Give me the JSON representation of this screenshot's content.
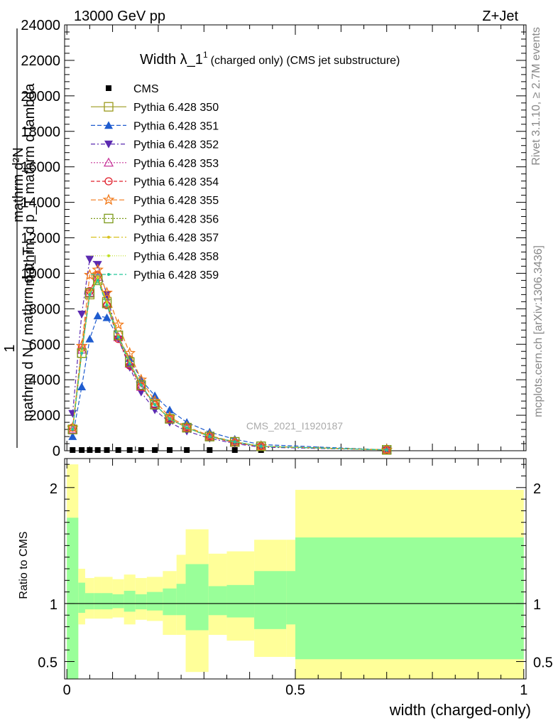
{
  "header": {
    "left": "13000 GeV pp",
    "right": "Z+Jet"
  },
  "title": {
    "main": "Width λ_1",
    "sup": "1",
    "suffix": "(charged only) (CMS jet substructure)"
  },
  "side_labels": {
    "rivet": "Rivet 3.1.10, ≥ 2.7M events",
    "mcplots": "mcplots.cern.ch [arXiv:1306.3436]"
  },
  "watermark": "CMS_2021_I1920187",
  "ylabel_main": {
    "line1": "mathrm d²N",
    "line2": "mathrm d p_T mathrm d lambda",
    "line3": "1",
    "line4": "mathrm d N / mathrm d p_T"
  },
  "ylabel_ratio": "Ratio to CMS",
  "xlabel": "width (charged-only)",
  "colors": {
    "band_inner": "#99ff99",
    "band_outer": "#ffff99",
    "data": "#000000"
  },
  "chart_data": [
    {
      "type": "line",
      "panel": "main",
      "x": [
        0.0125,
        0.0325,
        0.05,
        0.0675,
        0.0875,
        0.1125,
        0.1375,
        0.1625,
        0.1925,
        0.225,
        0.2625,
        0.3125,
        0.3675,
        0.425,
        0.7
      ],
      "xlim": [
        -0.005,
        1.005
      ],
      "ylim": [
        0,
        24000
      ],
      "yticks": [
        0,
        2000,
        4000,
        6000,
        8000,
        10000,
        12000,
        14000,
        16000,
        18000,
        20000,
        22000,
        24000
      ],
      "xticks": [
        0,
        0.5,
        1
      ],
      "series": [
        {
          "name": "CMS",
          "color": "#000000",
          "marker": "square-filled",
          "dash": "",
          "values": [
            40,
            40,
            40,
            40,
            40,
            40,
            40,
            40,
            40,
            40,
            40,
            40,
            40,
            40,
            40
          ]
        },
        {
          "name": "Pythia 6.428 350",
          "color": "#9c9a1d",
          "marker": "square-open",
          "dash": "",
          "values": [
            1200,
            5500,
            8800,
            9700,
            8400,
            6500,
            5000,
            3700,
            2600,
            1800,
            1300,
            800,
            500,
            250,
            50
          ]
        },
        {
          "name": "Pythia 6.428 351",
          "color": "#1f5ccf",
          "marker": "triangle-up-filled",
          "dash": "6,3",
          "values": [
            800,
            3600,
            6300,
            7600,
            7500,
            6400,
            5200,
            4000,
            3100,
            2300,
            1600,
            1050,
            650,
            350,
            50
          ]
        },
        {
          "name": "Pythia 6.428 352",
          "color": "#5b2ab0",
          "marker": "triangle-down-filled",
          "dash": "6,3,2,3",
          "values": [
            2100,
            7700,
            10800,
            10500,
            8800,
            6300,
            4700,
            3300,
            2300,
            1600,
            1100,
            700,
            400,
            200,
            50
          ]
        },
        {
          "name": "Pythia 6.428 353",
          "color": "#c8379a",
          "marker": "triangle-up-open",
          "dash": "2,2",
          "values": [
            1200,
            5700,
            8900,
            9800,
            8300,
            6400,
            4900,
            3600,
            2600,
            1800,
            1300,
            800,
            450,
            250,
            50
          ]
        },
        {
          "name": "Pythia 6.428 354",
          "color": "#e0202c",
          "marker": "circle-open",
          "dash": "5,3",
          "values": [
            1300,
            5800,
            9000,
            9900,
            8200,
            6300,
            4800,
            3600,
            2600,
            1800,
            1300,
            800,
            450,
            250,
            50
          ]
        },
        {
          "name": "Pythia 6.428 355",
          "color": "#f27a1a",
          "marker": "star-open",
          "dash": "7,3",
          "values": [
            1300,
            5900,
            9900,
            10200,
            8900,
            7100,
            5500,
            4000,
            2800,
            1900,
            1350,
            850,
            500,
            250,
            50
          ]
        },
        {
          "name": "Pythia 6.428 356",
          "color": "#7d9a1a",
          "marker": "square-open",
          "dash": "2,2",
          "values": [
            1200,
            5500,
            8900,
            9600,
            8300,
            6500,
            5000,
            3700,
            2600,
            1800,
            1300,
            800,
            500,
            250,
            50
          ]
        },
        {
          "name": "Pythia 6.428 357",
          "color": "#d8c21f",
          "marker": "dot",
          "dash": "8,3,2,3",
          "values": [
            1200,
            5600,
            8900,
            9800,
            8400,
            6500,
            5000,
            3700,
            2600,
            1800,
            1300,
            800,
            500,
            250,
            50
          ]
        },
        {
          "name": "Pythia 6.428 358",
          "color": "#bfe020",
          "marker": "dot",
          "dash": "1,2",
          "values": [
            1200,
            5600,
            8800,
            9700,
            8300,
            6400,
            5000,
            3700,
            2600,
            1800,
            1300,
            800,
            500,
            250,
            50
          ]
        },
        {
          "name": "Pythia 6.428 359",
          "color": "#25c69a",
          "marker": "dot",
          "dash": "5,3",
          "values": [
            1200,
            5500,
            8800,
            9600,
            8200,
            6400,
            4900,
            3700,
            2600,
            1800,
            1300,
            800,
            500,
            250,
            50
          ]
        }
      ]
    },
    {
      "type": "area",
      "panel": "ratio",
      "ylabel": "Ratio to CMS",
      "xlim": [
        -0.005,
        1.005
      ],
      "ylim": [
        0.35,
        2.25
      ],
      "yticks": [
        0.5,
        1,
        2
      ],
      "ytick_labels": [
        "0.5",
        "1",
        "2"
      ],
      "xticks": [
        0,
        0.5,
        1
      ],
      "xtick_labels": [
        "0",
        "0.5",
        "1"
      ],
      "reference_line": 1,
      "bins": [
        {
          "lo": 0.0,
          "hi": 0.025,
          "inner": [
            0.28,
            1.74
          ],
          "outer": [
            0.28,
            2.2
          ]
        },
        {
          "lo": 0.025,
          "hi": 0.04,
          "inner": [
            0.92,
            1.18
          ],
          "outer": [
            0.82,
            1.3
          ]
        },
        {
          "lo": 0.04,
          "hi": 0.06,
          "inner": [
            0.95,
            1.09
          ],
          "outer": [
            0.87,
            1.22
          ]
        },
        {
          "lo": 0.06,
          "hi": 0.075,
          "inner": [
            0.95,
            1.09
          ],
          "outer": [
            0.87,
            1.23
          ]
        },
        {
          "lo": 0.075,
          "hi": 0.1,
          "inner": [
            0.95,
            1.09
          ],
          "outer": [
            0.87,
            1.23
          ]
        },
        {
          "lo": 0.1,
          "hi": 0.125,
          "inner": [
            0.96,
            1.08
          ],
          "outer": [
            0.88,
            1.21
          ]
        },
        {
          "lo": 0.125,
          "hi": 0.15,
          "inner": [
            0.93,
            1.11
          ],
          "outer": [
            0.82,
            1.25
          ]
        },
        {
          "lo": 0.15,
          "hi": 0.175,
          "inner": [
            0.95,
            1.08
          ],
          "outer": [
            0.86,
            1.22
          ]
        },
        {
          "lo": 0.175,
          "hi": 0.21,
          "inner": [
            0.94,
            1.1
          ],
          "outer": [
            0.85,
            1.23
          ]
        },
        {
          "lo": 0.21,
          "hi": 0.24,
          "inner": [
            0.9,
            1.13
          ],
          "outer": [
            0.73,
            1.28
          ]
        },
        {
          "lo": 0.24,
          "hi": 0.26,
          "inner": [
            0.9,
            1.17
          ],
          "outer": [
            0.73,
            1.42
          ]
        },
        {
          "lo": 0.26,
          "hi": 0.31,
          "inner": [
            0.77,
            1.34
          ],
          "outer": [
            0.41,
            1.64
          ]
        },
        {
          "lo": 0.31,
          "hi": 0.35,
          "inner": [
            0.9,
            1.15
          ],
          "outer": [
            0.73,
            1.43
          ]
        },
        {
          "lo": 0.35,
          "hi": 0.41,
          "inner": [
            0.88,
            1.16
          ],
          "outer": [
            0.68,
            1.45
          ]
        },
        {
          "lo": 0.41,
          "hi": 0.48,
          "inner": [
            0.78,
            1.28
          ],
          "outer": [
            0.54,
            1.55
          ]
        },
        {
          "lo": 0.48,
          "hi": 0.5,
          "inner": [
            0.82,
            1.28
          ],
          "outer": [
            0.54,
            1.55
          ]
        },
        {
          "lo": 0.5,
          "hi": 1.0,
          "inner": [
            0.52,
            1.57
          ],
          "outer": [
            0.35,
            1.98
          ]
        }
      ]
    }
  ]
}
